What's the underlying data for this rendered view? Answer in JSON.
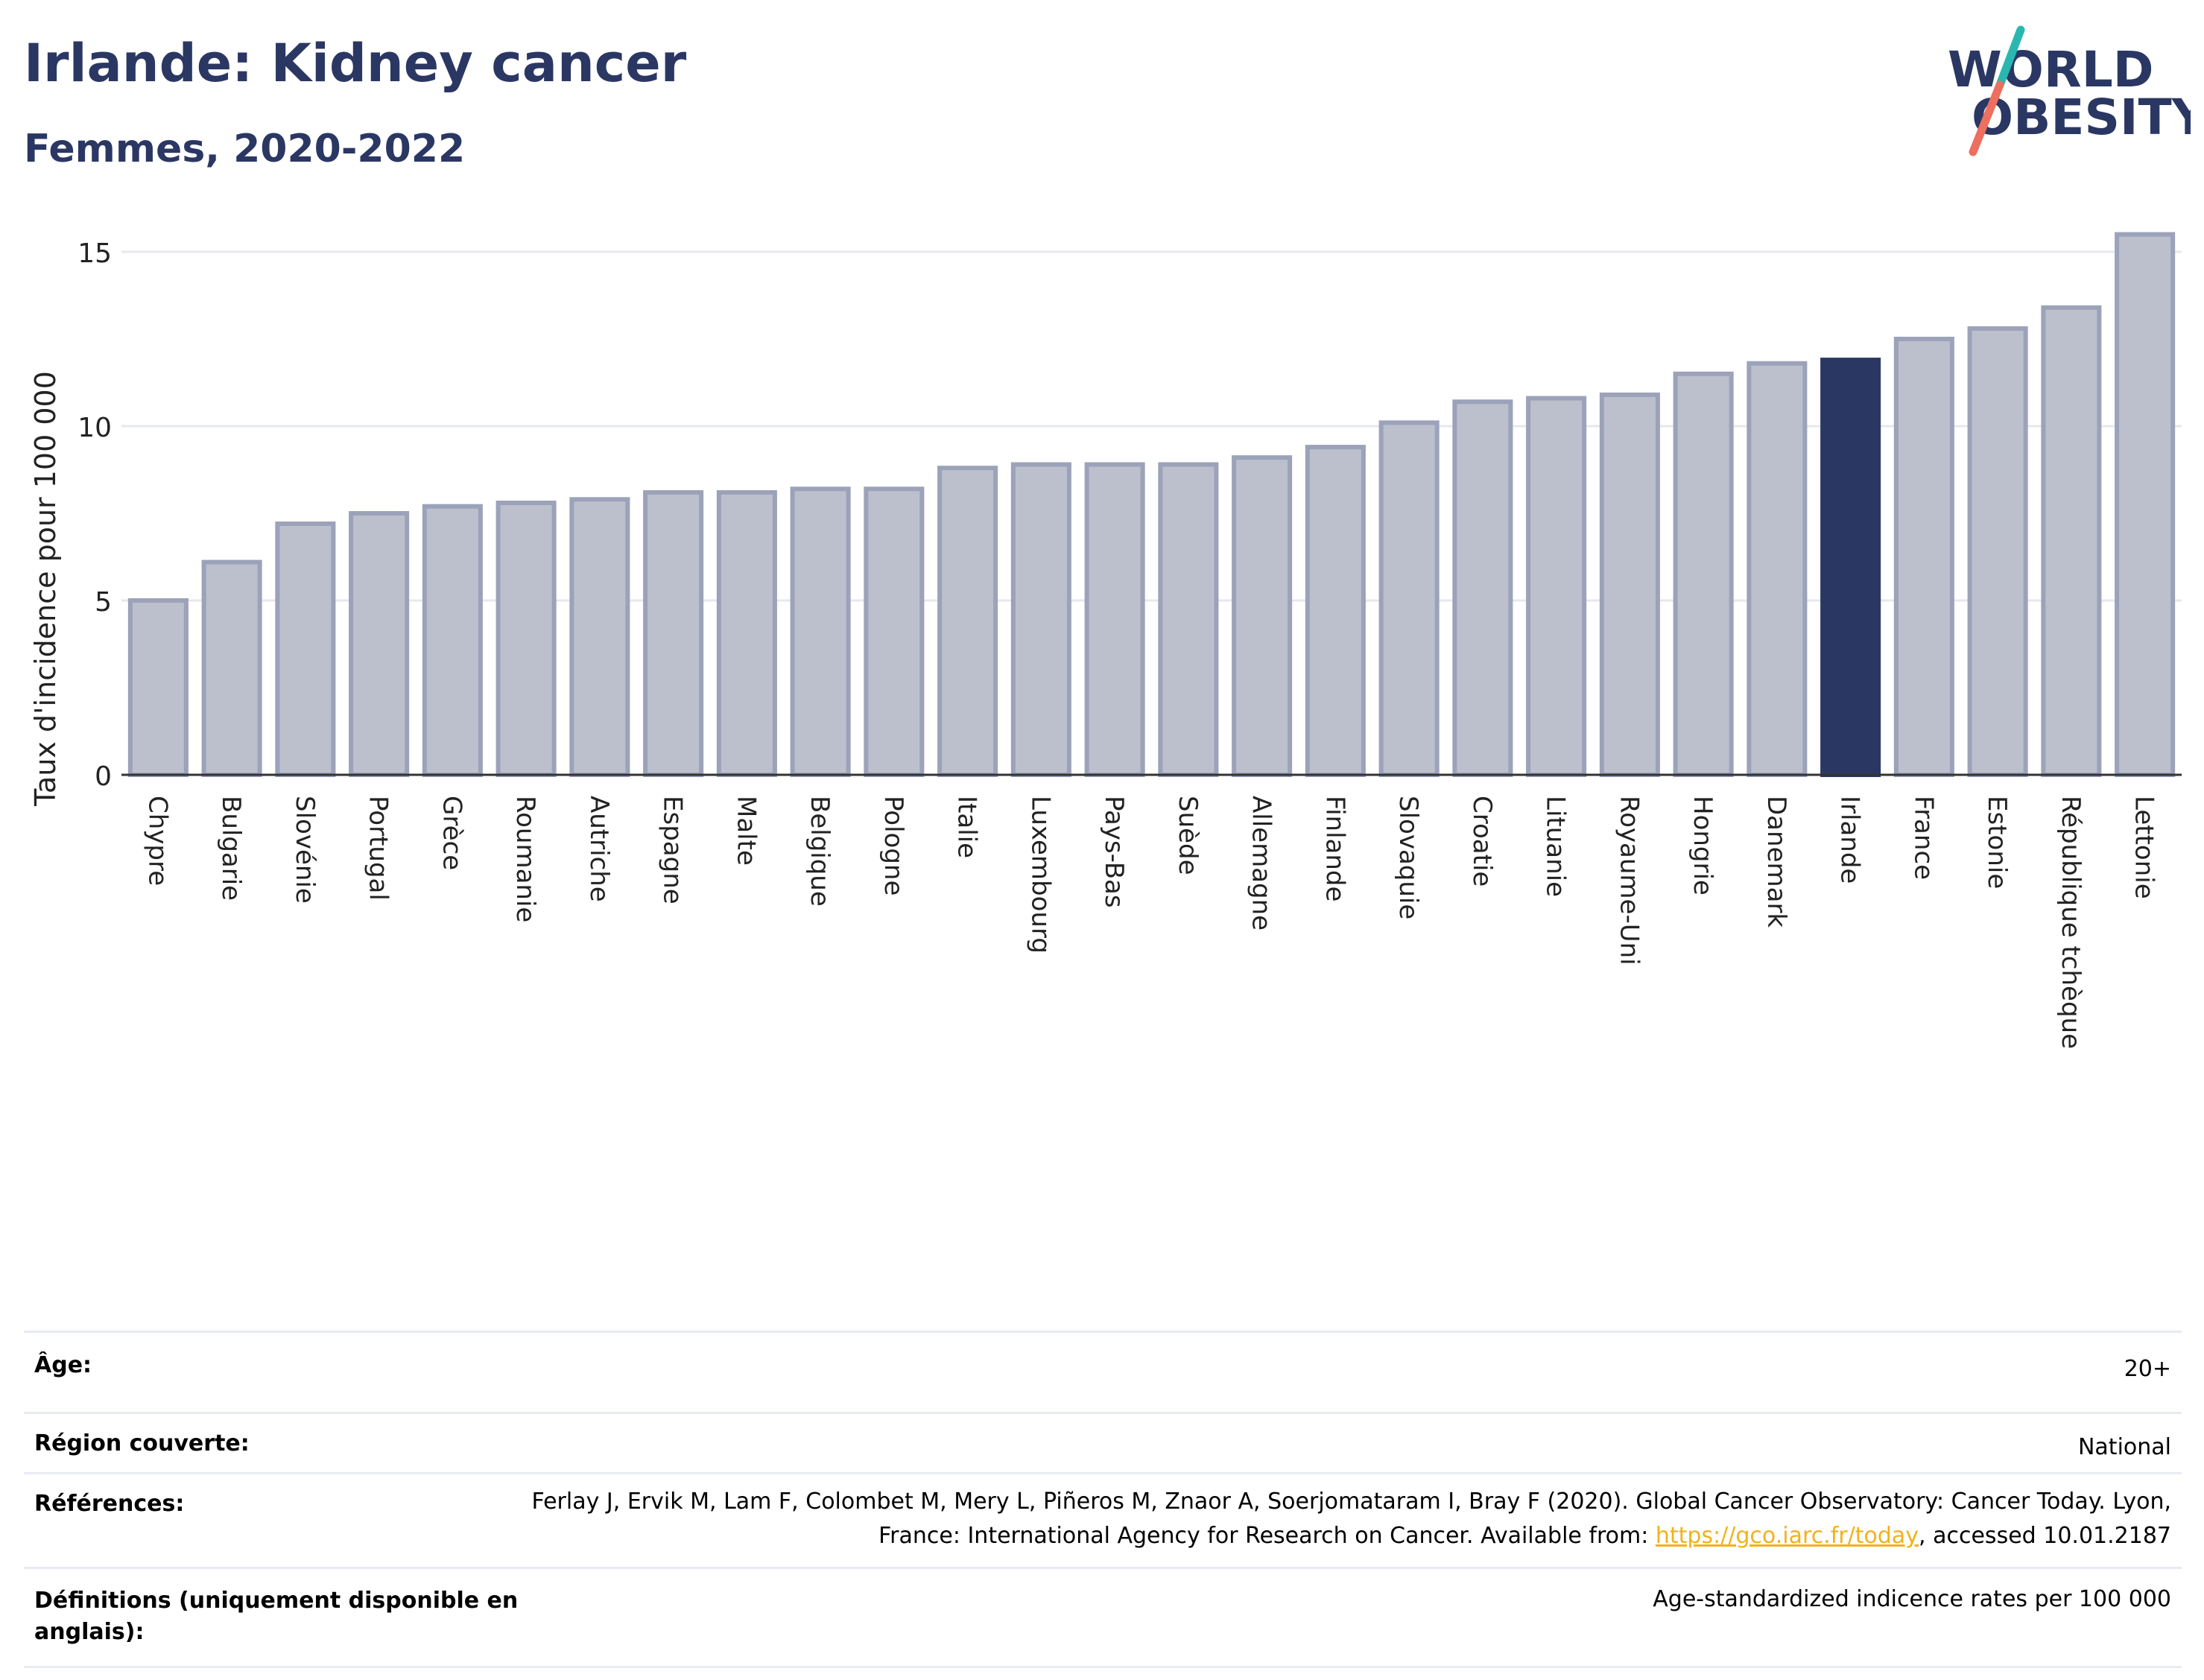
{
  "header": {
    "title": "Irlande: Kidney cancer",
    "subtitle": "Femmes, 2020-2022"
  },
  "logo": {
    "line1": "WORLD",
    "line2": "OBESITY",
    "accent_teal": "#2bb7b1",
    "accent_coral": "#ec6f5f"
  },
  "colors": {
    "bar_default": "#bcc0cd",
    "bar_stroke": "#9ba2b9",
    "bar_highlight": "#2b3763",
    "grid": "#e6e8ee",
    "axis": "#333333"
  },
  "chart_data": {
    "type": "bar",
    "ylabel": "Taux d'incidence pour 100 000",
    "ylim": [
      0,
      16
    ],
    "yticks": [
      0,
      5,
      10,
      15
    ],
    "grid": true,
    "highlight": "Irlande",
    "categories": [
      "Chypre",
      "Bulgarie",
      "Slovénie",
      "Portugal",
      "Grèce",
      "Roumanie",
      "Autriche",
      "Espagne",
      "Malte",
      "Belgique",
      "Pologne",
      "Italie",
      "Luxembourg",
      "Pays-Bas",
      "Suède",
      "Allemagne",
      "Finlande",
      "Slovaquie",
      "Croatie",
      "Lituanie",
      "Royaume-Uni",
      "Hongrie",
      "Danemark",
      "Irlande",
      "France",
      "Estonie",
      "République tchèque",
      "Lettonie"
    ],
    "values": [
      5.0,
      6.1,
      7.2,
      7.5,
      7.7,
      7.8,
      7.9,
      8.1,
      8.1,
      8.2,
      8.2,
      8.8,
      8.9,
      8.9,
      8.9,
      9.1,
      9.4,
      10.1,
      10.7,
      10.8,
      10.9,
      11.5,
      11.8,
      11.9,
      12.5,
      12.8,
      13.4,
      15.5
    ]
  },
  "meta": {
    "age_label": "Âge:",
    "age_value": "20+",
    "region_label": "Région couverte:",
    "region_value": "National",
    "refs_label": "Références:",
    "refs_text_1": "Ferlay J, Ervik M, Lam F, Colombet M, Mery L, Piñeros M, Znaor A, Soerjomataram I, Bray F (2020). Global Cancer Observatory: Cancer Today. Lyon, France: International Agency for Research on Cancer. Available from: ",
    "refs_link": "https://gco.iarc.fr/today",
    "refs_text_2": ", accessed 10.01.2187",
    "defs_label": "Définitions (uniquement disponible en anglais):",
    "defs_value": "Age-standardized indicence rates per 100 000"
  }
}
